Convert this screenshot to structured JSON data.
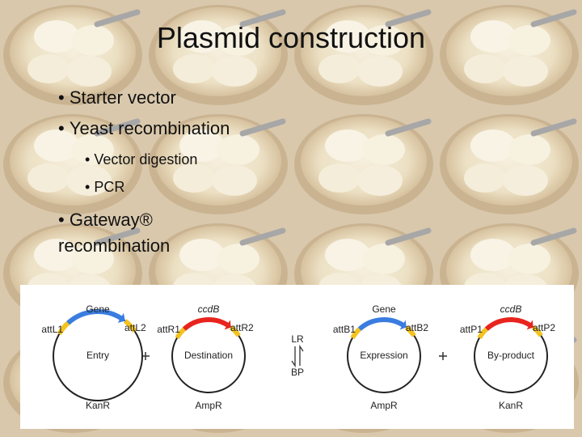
{
  "title": "Plasmid construction",
  "bullets": [
    {
      "text": "Starter vector"
    },
    {
      "text": "Yeast recombination",
      "sub": [
        "Vector digestion",
        "PCR"
      ]
    },
    {
      "text": "Gateway® recombination"
    }
  ],
  "diagram": {
    "plasmids": [
      {
        "name": "Entry",
        "gene": "Gene",
        "left_site": "attL1",
        "right_site": "attL2",
        "marker": "KanR",
        "color": "#3a7de0"
      },
      {
        "name": "Destination",
        "gene": "ccdB",
        "left_site": "attR1",
        "right_site": "attR2",
        "marker": "AmpR",
        "color": "#e8241e"
      },
      {
        "name": "Expression",
        "gene": "Gene",
        "left_site": "attB1",
        "right_site": "attB2",
        "marker": "AmpR",
        "color": "#3a7de0"
      },
      {
        "name": "By-product",
        "gene": "ccdB",
        "left_site": "attP1",
        "right_site": "attP2",
        "marker": "KanR",
        "color": "#e8241e"
      }
    ],
    "forward": "LR",
    "reverse": "BP"
  }
}
